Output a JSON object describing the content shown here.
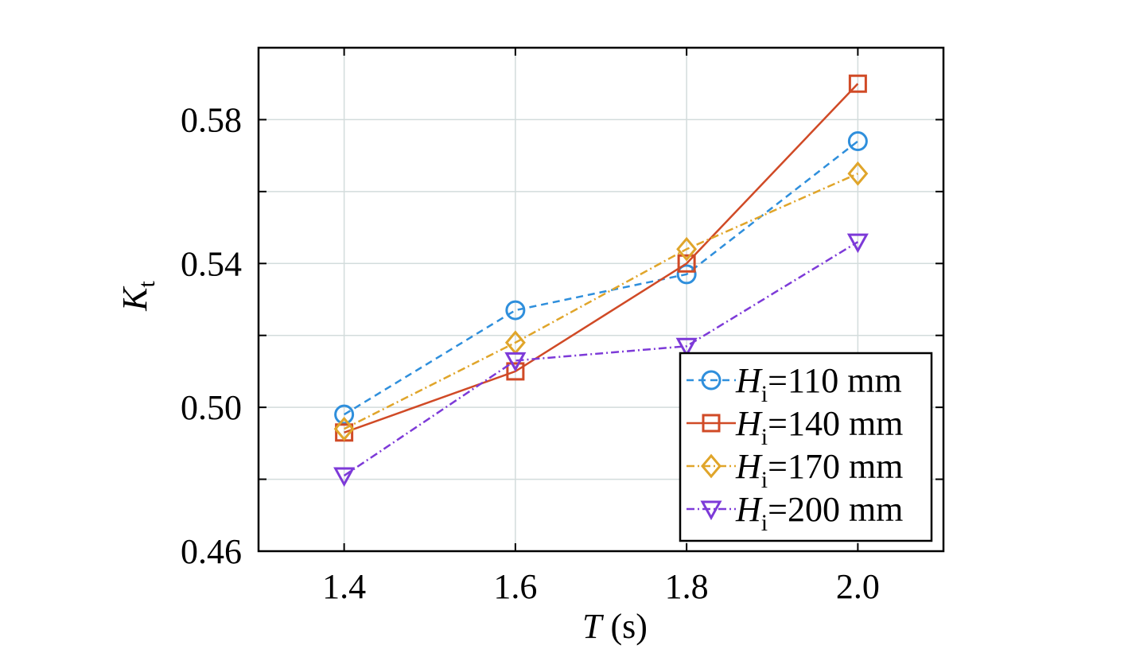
{
  "chart_data": {
    "type": "line",
    "title": "",
    "xlabel_var": "T",
    "xlabel_unit": " (s)",
    "ylabel_var": "K",
    "ylabel_sub": "t",
    "x": [
      1.4,
      1.6,
      1.8,
      2.0
    ],
    "x_tick_labels": [
      "1.4",
      "1.6",
      "1.8",
      "2.0"
    ],
    "xlim": [
      1.3,
      2.1
    ],
    "ylim": [
      0.46,
      0.6
    ],
    "y_ticks": [
      0.46,
      0.5,
      0.54,
      0.58
    ],
    "y_tick_labels": [
      "0.46",
      "0.50",
      "0.54",
      "0.58"
    ],
    "y_minor_ticks": [
      0.48,
      0.52,
      0.56
    ],
    "grid": true,
    "legend_position": "bottom-right",
    "series": [
      {
        "legend_var": "H",
        "legend_sub": "i",
        "legend_rest": "=110 mm",
        "values": [
          0.498,
          0.527,
          0.537,
          0.574
        ],
        "color": "#2f8fdc",
        "dash": "9,6",
        "marker": "circle"
      },
      {
        "legend_var": "H",
        "legend_sub": "i",
        "legend_rest": "=140 mm",
        "values": [
          0.493,
          0.51,
          0.54,
          0.59
        ],
        "color": "#d04a26",
        "dash": "",
        "marker": "square"
      },
      {
        "legend_var": "H",
        "legend_sub": "i",
        "legend_rest": "=170 mm",
        "values": [
          0.494,
          0.518,
          0.544,
          0.565
        ],
        "color": "#e0a52a",
        "dash": "10,4,2,4",
        "marker": "diamond"
      },
      {
        "legend_var": "H",
        "legend_sub": "i",
        "legend_rest": "=200 mm",
        "values": [
          0.481,
          0.513,
          0.517,
          0.546
        ],
        "color": "#7d3ad8",
        "dash": "10,4,2,4",
        "marker": "triangle-down"
      }
    ]
  }
}
